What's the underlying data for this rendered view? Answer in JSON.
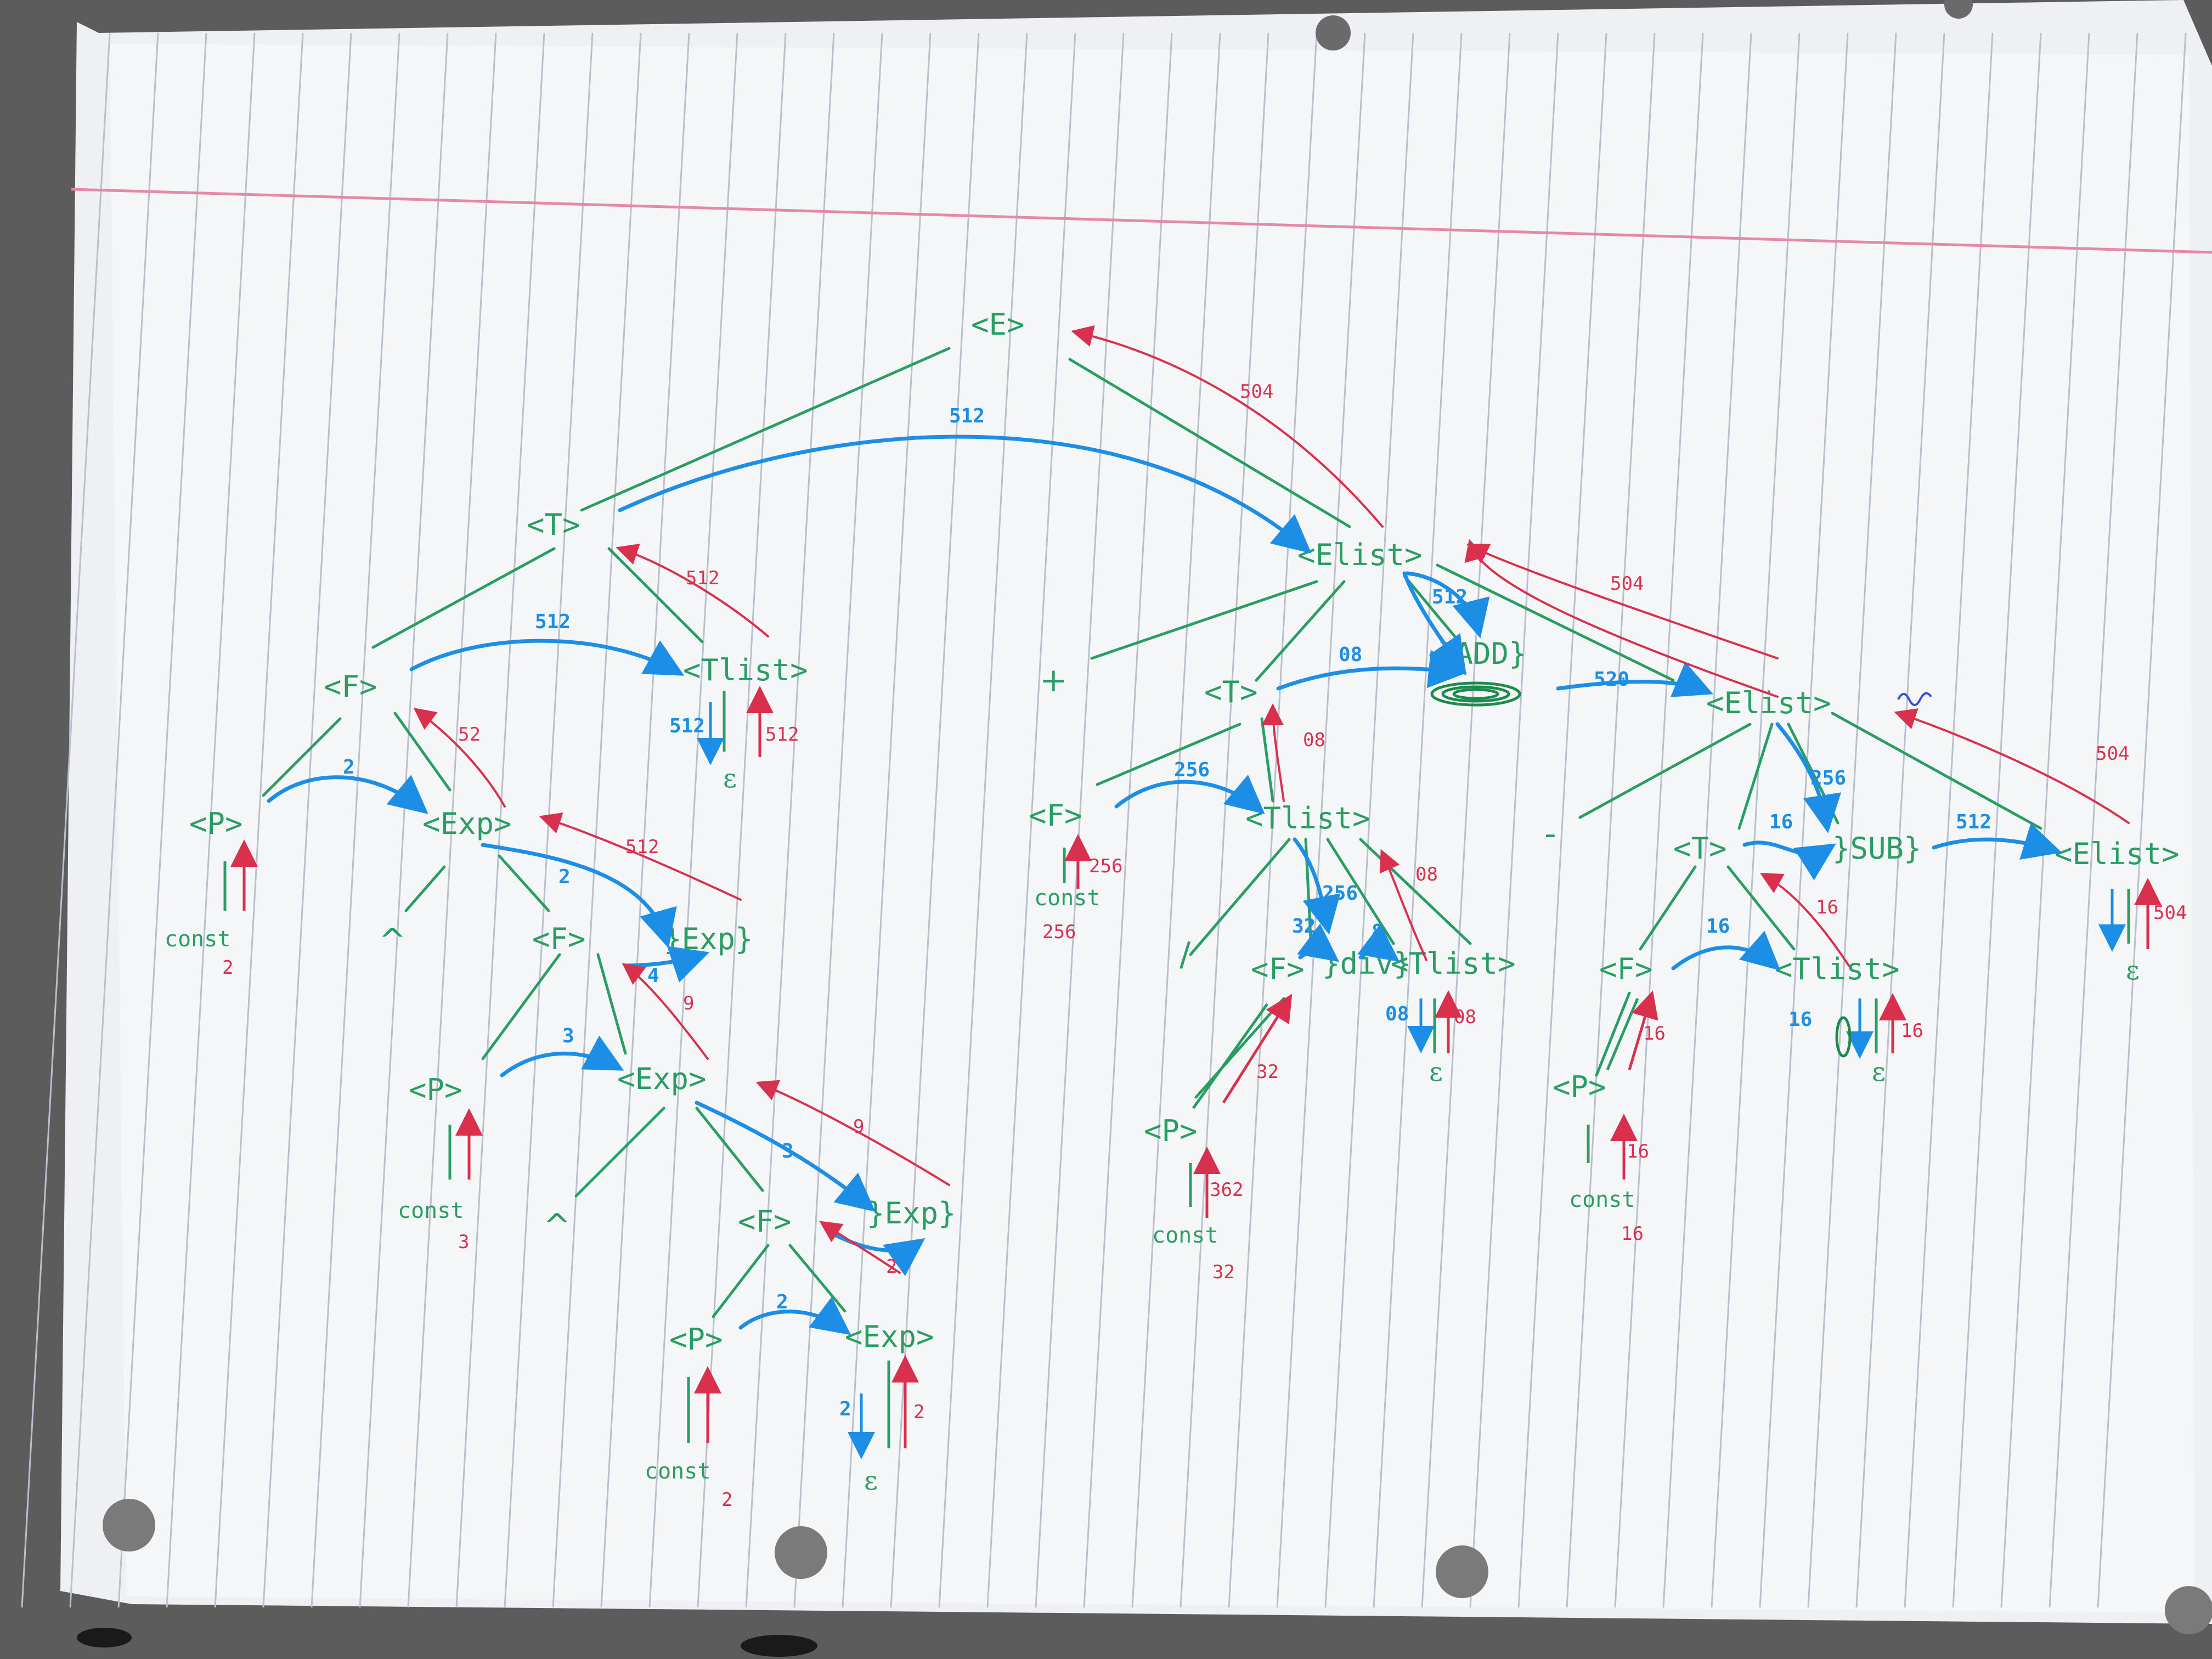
{
  "colors": {
    "paper": "#f5f6f8",
    "rule_blue": "#b9c0cc",
    "margin_pink": "#e58aa4",
    "tree_green": "#2a9d63",
    "synth_blue": "#1c8ee6",
    "inherit_red": "#d9304e"
  },
  "nodes": [
    {
      "id": "E",
      "label": "<E>"
    },
    {
      "id": "T1",
      "label": "<T>"
    },
    {
      "id": "Elist1",
      "label": "<Elist>"
    },
    {
      "id": "F1",
      "label": "<F>"
    },
    {
      "id": "Tlist1",
      "label": "<Tlist>"
    },
    {
      "id": "P1",
      "label": "<P>"
    },
    {
      "id": "Exp1",
      "label": "<Exp>"
    },
    {
      "id": "F2",
      "label": "<F>"
    },
    {
      "id": "ExpAct1",
      "label": "}Exp}"
    },
    {
      "id": "P2",
      "label": "<P>"
    },
    {
      "id": "Exp2",
      "label": "<Exp>"
    },
    {
      "id": "F3",
      "label": "<F>"
    },
    {
      "id": "ExpAct2",
      "label": "}Exp}"
    },
    {
      "id": "P3",
      "label": "<P>"
    },
    {
      "id": "Exp3",
      "label": "<Exp>"
    },
    {
      "id": "T2",
      "label": "<T>"
    },
    {
      "id": "ADD",
      "label": "}ADD}"
    },
    {
      "id": "Elist2",
      "label": "<Elist>"
    },
    {
      "id": "F4",
      "label": "<F>"
    },
    {
      "id": "Tlist2",
      "label": "<Tlist>"
    },
    {
      "id": "F5",
      "label": "<F>"
    },
    {
      "id": "Div",
      "label": "}div}"
    },
    {
      "id": "Tlist3",
      "label": "<Tlist>"
    },
    {
      "id": "P4",
      "label": "<P>"
    },
    {
      "id": "T3",
      "label": "<T>"
    },
    {
      "id": "SUB",
      "label": "}SUB}"
    },
    {
      "id": "Elist3",
      "label": "<Elist>"
    },
    {
      "id": "F6",
      "label": "<F>"
    },
    {
      "id": "Tlist4",
      "label": "<Tlist>"
    },
    {
      "id": "P5",
      "label": "<P>"
    }
  ],
  "operators": {
    "plus": "+",
    "caret1": "^",
    "caret2": "^",
    "slash": "/",
    "minus": "-"
  },
  "leaves": {
    "const1": "const",
    "val1": "2",
    "const2": "const",
    "val2": "3",
    "const3": "const",
    "val3": "2",
    "const4": "const",
    "val4": "256",
    "const5": "const",
    "val5": "32",
    "const6": "const",
    "val6": "16",
    "eps": "ε"
  },
  "labels": {
    "l512a": "512",
    "l512b": "512",
    "l512c": "512",
    "l512d": "512",
    "l512e": "512",
    "l2a": "2",
    "l2b": "2",
    "l2c": "2",
    "l2d": "2",
    "l4": "4",
    "l3": "3",
    "l3b": "3",
    "l256a": "256",
    "l256b": "256",
    "l256c": "256",
    "l08a": "08",
    "l08b": "08",
    "l32a": "32",
    "l8": "8",
    "l16a": "16",
    "l16b": "16",
    "l16c": "16",
    "l520": "520",
    "r504a": "504",
    "r512a": "512",
    "r52": "52",
    "r512b": "512",
    "r512c": "512",
    "r9a": "9",
    "r9b": "9",
    "r2a": "2",
    "r2b": "2",
    "r256": "256",
    "r08a": "08",
    "r08b": "08",
    "r08c": "08",
    "r32": "32",
    "r362": "362",
    "r16a": "16",
    "r16b": "16",
    "r16c": "16",
    "r16d": "16",
    "r504b": "504",
    "r504c": "504",
    "r504d": "504"
  }
}
